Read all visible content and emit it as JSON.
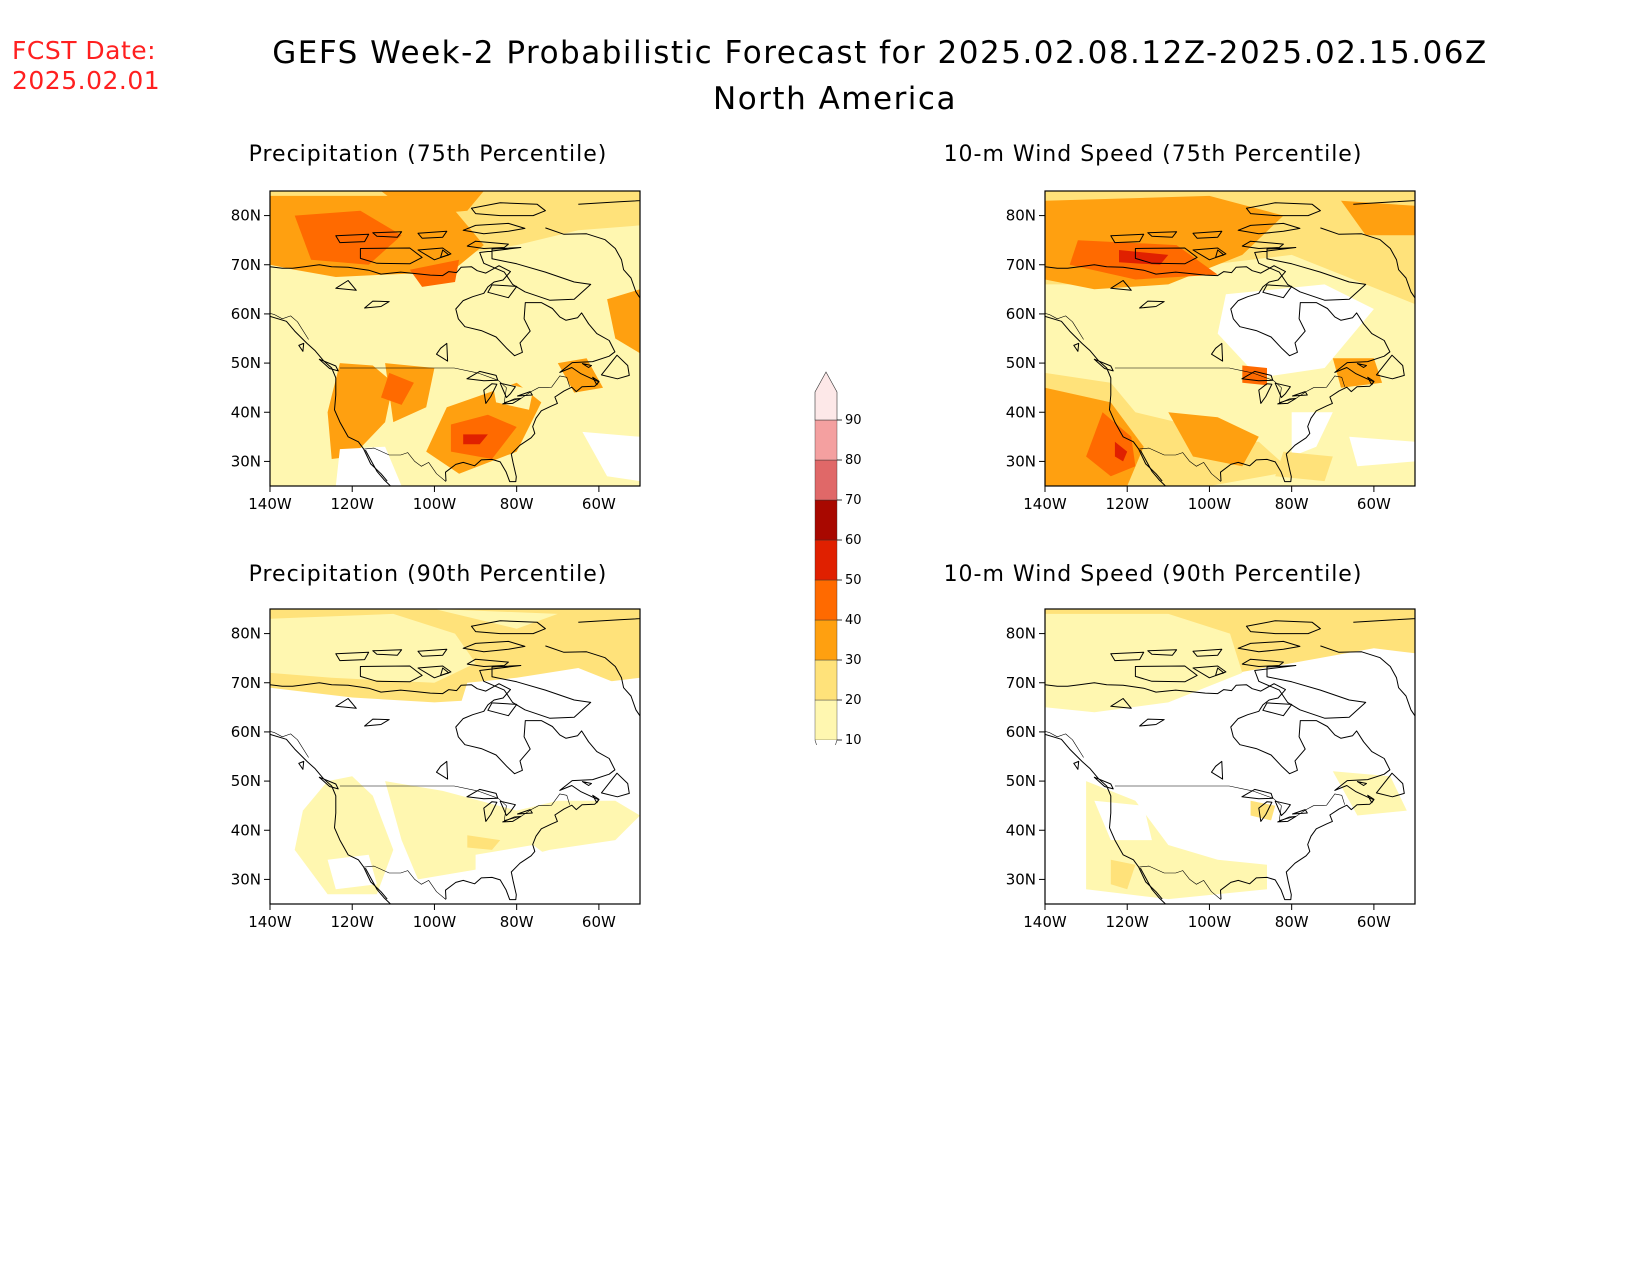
{
  "header": {
    "fcst_label": "FCST Date:",
    "fcst_date": "2025.02.01",
    "title": "GEFS Week-2 Probabilistic Forecast for 2025.02.08.12Z-2025.02.15.06Z",
    "region": "North America"
  },
  "panels": [
    {
      "title": "Precipitation (75th Percentile)",
      "level": 3
    },
    {
      "title": "10-m Wind Speed (75th Percentile)",
      "level": 3
    },
    {
      "title": "Precipitation (90th Percentile)",
      "level": 1
    },
    {
      "title": "10-m Wind Speed (90th Percentile)",
      "level": 1
    }
  ],
  "axes": {
    "lat_labels": [
      "80N",
      "70N",
      "60N",
      "50N",
      "40N",
      "30N"
    ],
    "lon_labels": [
      "140W",
      "120W",
      "100W",
      "80W",
      "60W"
    ]
  },
  "colorbar": {
    "levels": [
      "10",
      "20",
      "30",
      "40",
      "50",
      "60",
      "70",
      "80",
      "90"
    ],
    "colors": [
      "#fff7b0",
      "#ffe27a",
      "#ffa010",
      "#ff6a00",
      "#e02000",
      "#a80800",
      "#e06868",
      "#f4a0a0",
      "#fde8e8"
    ]
  }
}
